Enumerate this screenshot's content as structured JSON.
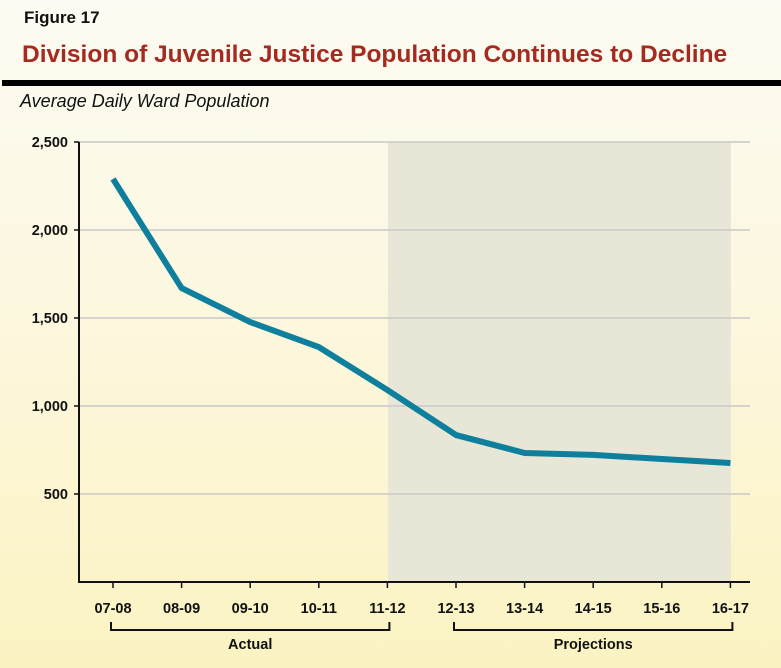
{
  "figure_label": "Figure 17",
  "chart_data": {
    "type": "line",
    "title": "Division of Juvenile Justice Population Continues to Decline",
    "subtitle": "Average Daily Ward Population",
    "categories": [
      "07-08",
      "08-09",
      "09-10",
      "10-11",
      "11-12",
      "12-13",
      "13-14",
      "14-15",
      "15-16",
      "16-17"
    ],
    "values": [
      2290,
      1670,
      1477,
      1335,
      1091,
      835,
      733,
      722,
      699,
      676
    ],
    "ylim": [
      0,
      2500
    ],
    "yticks": [
      500,
      1000,
      1500,
      2000,
      2500
    ],
    "ytick_labels": [
      "500",
      "1,000",
      "1,500",
      "2,000",
      "2,500"
    ],
    "grid": true,
    "groups": [
      {
        "label": "Actual",
        "from": "07-08",
        "to": "11-12"
      },
      {
        "label": "Projections",
        "from": "12-13",
        "to": "16-17",
        "shaded": true
      }
    ],
    "colors": {
      "line": "#0e7f9c",
      "title": "#a52a1f",
      "shade": "#e8e6d6",
      "grid": "#c8c8c8"
    }
  }
}
